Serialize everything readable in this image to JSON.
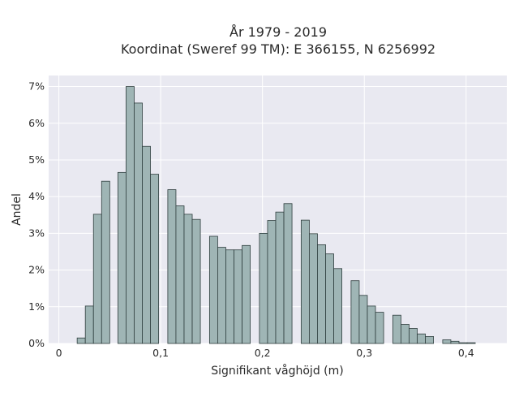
{
  "chart_data": {
    "type": "bar",
    "title": "År 1979 - 2019",
    "subtitle": "Koordinat (Sweref 99 TM): E 366155, N 6256992",
    "xlabel": "Signifikant våghöjd (m)",
    "ylabel": "Andel",
    "xlim": [
      -0.01,
      0.44
    ],
    "ylim": [
      0,
      7.3
    ],
    "x_ticks": [
      {
        "value": 0,
        "label": "0"
      },
      {
        "value": 0.1,
        "label": "0,1"
      },
      {
        "value": 0.2,
        "label": "0,2"
      },
      {
        "value": 0.3,
        "label": "0,3"
      },
      {
        "value": 0.4,
        "label": "0,4"
      }
    ],
    "y_ticks": [
      {
        "value": 0,
        "label": "0%"
      },
      {
        "value": 1,
        "label": "1%"
      },
      {
        "value": 2,
        "label": "2%"
      },
      {
        "value": 3,
        "label": "3%"
      },
      {
        "value": 4,
        "label": "4%"
      },
      {
        "value": 5,
        "label": "5%"
      },
      {
        "value": 6,
        "label": "6%"
      },
      {
        "value": 7,
        "label": "7%"
      }
    ],
    "bin_width": 0.008,
    "bins": [
      {
        "x": 0.018,
        "value": 0.15
      },
      {
        "x": 0.026,
        "value": 1.02
      },
      {
        "x": 0.034,
        "value": 3.52
      },
      {
        "x": 0.042,
        "value": 4.42
      },
      {
        "x": 0.058,
        "value": 4.66
      },
      {
        "x": 0.066,
        "value": 7.0
      },
      {
        "x": 0.074,
        "value": 6.55
      },
      {
        "x": 0.082,
        "value": 5.37
      },
      {
        "x": 0.09,
        "value": 4.61
      },
      {
        "x": 0.107,
        "value": 4.19
      },
      {
        "x": 0.115,
        "value": 3.75
      },
      {
        "x": 0.123,
        "value": 3.52
      },
      {
        "x": 0.131,
        "value": 3.38
      },
      {
        "x": 0.148,
        "value": 2.92
      },
      {
        "x": 0.156,
        "value": 2.62
      },
      {
        "x": 0.164,
        "value": 2.55
      },
      {
        "x": 0.172,
        "value": 2.55
      },
      {
        "x": 0.18,
        "value": 2.67
      },
      {
        "x": 0.197,
        "value": 3.0
      },
      {
        "x": 0.205,
        "value": 3.35
      },
      {
        "x": 0.213,
        "value": 3.58
      },
      {
        "x": 0.221,
        "value": 3.81
      },
      {
        "x": 0.238,
        "value": 3.36
      },
      {
        "x": 0.246,
        "value": 2.99
      },
      {
        "x": 0.254,
        "value": 2.69
      },
      {
        "x": 0.262,
        "value": 2.44
      },
      {
        "x": 0.27,
        "value": 2.04
      },
      {
        "x": 0.287,
        "value": 1.71
      },
      {
        "x": 0.295,
        "value": 1.31
      },
      {
        "x": 0.303,
        "value": 1.02
      },
      {
        "x": 0.311,
        "value": 0.85
      },
      {
        "x": 0.328,
        "value": 0.77
      },
      {
        "x": 0.336,
        "value": 0.52
      },
      {
        "x": 0.344,
        "value": 0.41
      },
      {
        "x": 0.352,
        "value": 0.26
      },
      {
        "x": 0.36,
        "value": 0.19
      },
      {
        "x": 0.377,
        "value": 0.1
      },
      {
        "x": 0.385,
        "value": 0.06
      },
      {
        "x": 0.393,
        "value": 0.02
      },
      {
        "x": 0.401,
        "value": 0.02
      }
    ],
    "grid": true,
    "colors": {
      "bar_fill": "#9fb5b5",
      "bar_stroke": "#2f3e3e",
      "plot_background": "#e9e9f1",
      "grid": "#ffffff"
    }
  }
}
